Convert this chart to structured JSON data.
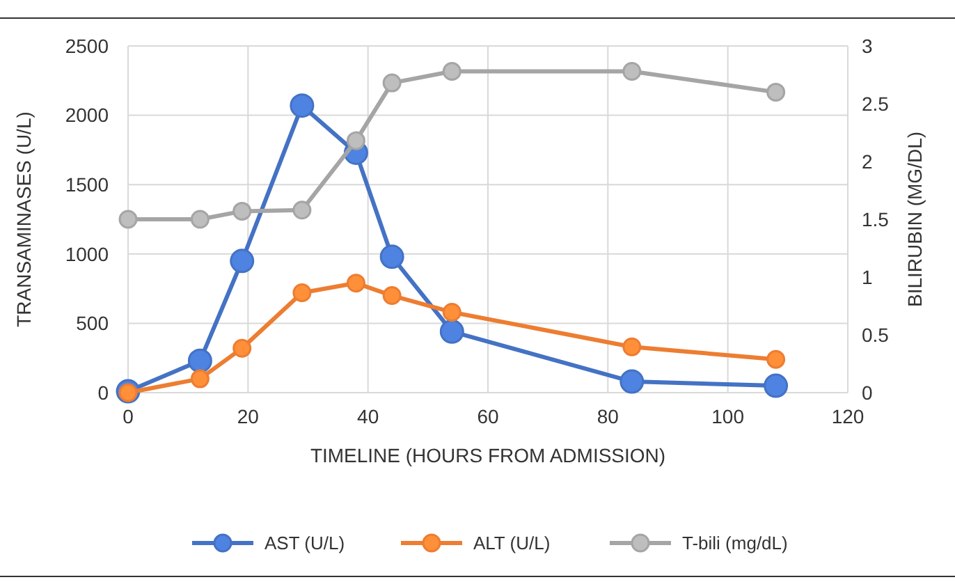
{
  "chart_data": {
    "type": "line",
    "xlabel": "TIMELINE (HOURS FROM ADMISSION)",
    "ylabel": "TRANSAMINASES (U/L)",
    "y2label": "BILIRUBIN (MG/DL)",
    "x": [
      0,
      12,
      19,
      29,
      38,
      44,
      54,
      84,
      108
    ],
    "xlim": [
      0,
      120
    ],
    "xticks": [
      0,
      20,
      40,
      60,
      80,
      100,
      120
    ],
    "ylim": [
      0,
      2500
    ],
    "yticks": [
      0,
      500,
      1000,
      1500,
      2000,
      2500
    ],
    "y2lim": [
      0,
      3
    ],
    "y2ticks": [
      0,
      0.5,
      1,
      1.5,
      2,
      2.5,
      3
    ],
    "grid": true,
    "legend": "bottom",
    "marker": "circle",
    "line_style": "solid",
    "series": [
      {
        "name": "AST (U/L)",
        "color": "#4472c4",
        "values": [
          10,
          230,
          950,
          2070,
          1730,
          980,
          440,
          80,
          50
        ]
      },
      {
        "name": "ALT (U/L)",
        "color": "#ed7d31",
        "values": [
          0,
          100,
          320,
          720,
          790,
          700,
          580,
          330,
          240
        ]
      },
      {
        "name": "T-bili (mg/dL)",
        "color": "#a5a5a5",
        "axis": "y2",
        "values": [
          1.5,
          1.5,
          1.57,
          1.58,
          2.18,
          2.68,
          2.78,
          2.78,
          2.6
        ]
      }
    ]
  }
}
